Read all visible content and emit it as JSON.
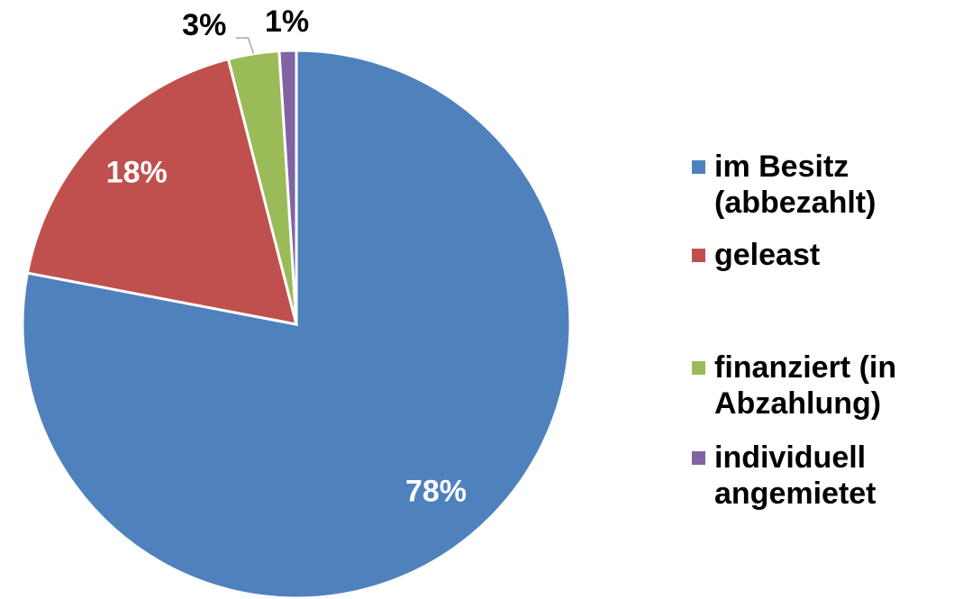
{
  "chart_data": {
    "type": "pie",
    "categories": [
      "im Besitz (abbezahlt)",
      "geleast",
      "finanziert (in Abzahlung)",
      "individuell angemietet"
    ],
    "values": [
      78,
      18,
      3,
      1
    ],
    "value_labels": [
      "78%",
      "18%",
      "3%",
      "1%"
    ],
    "colors": [
      "#4f81bd",
      "#c0504d",
      "#9bbb59",
      "#8064a2"
    ],
    "legend": "right"
  }
}
